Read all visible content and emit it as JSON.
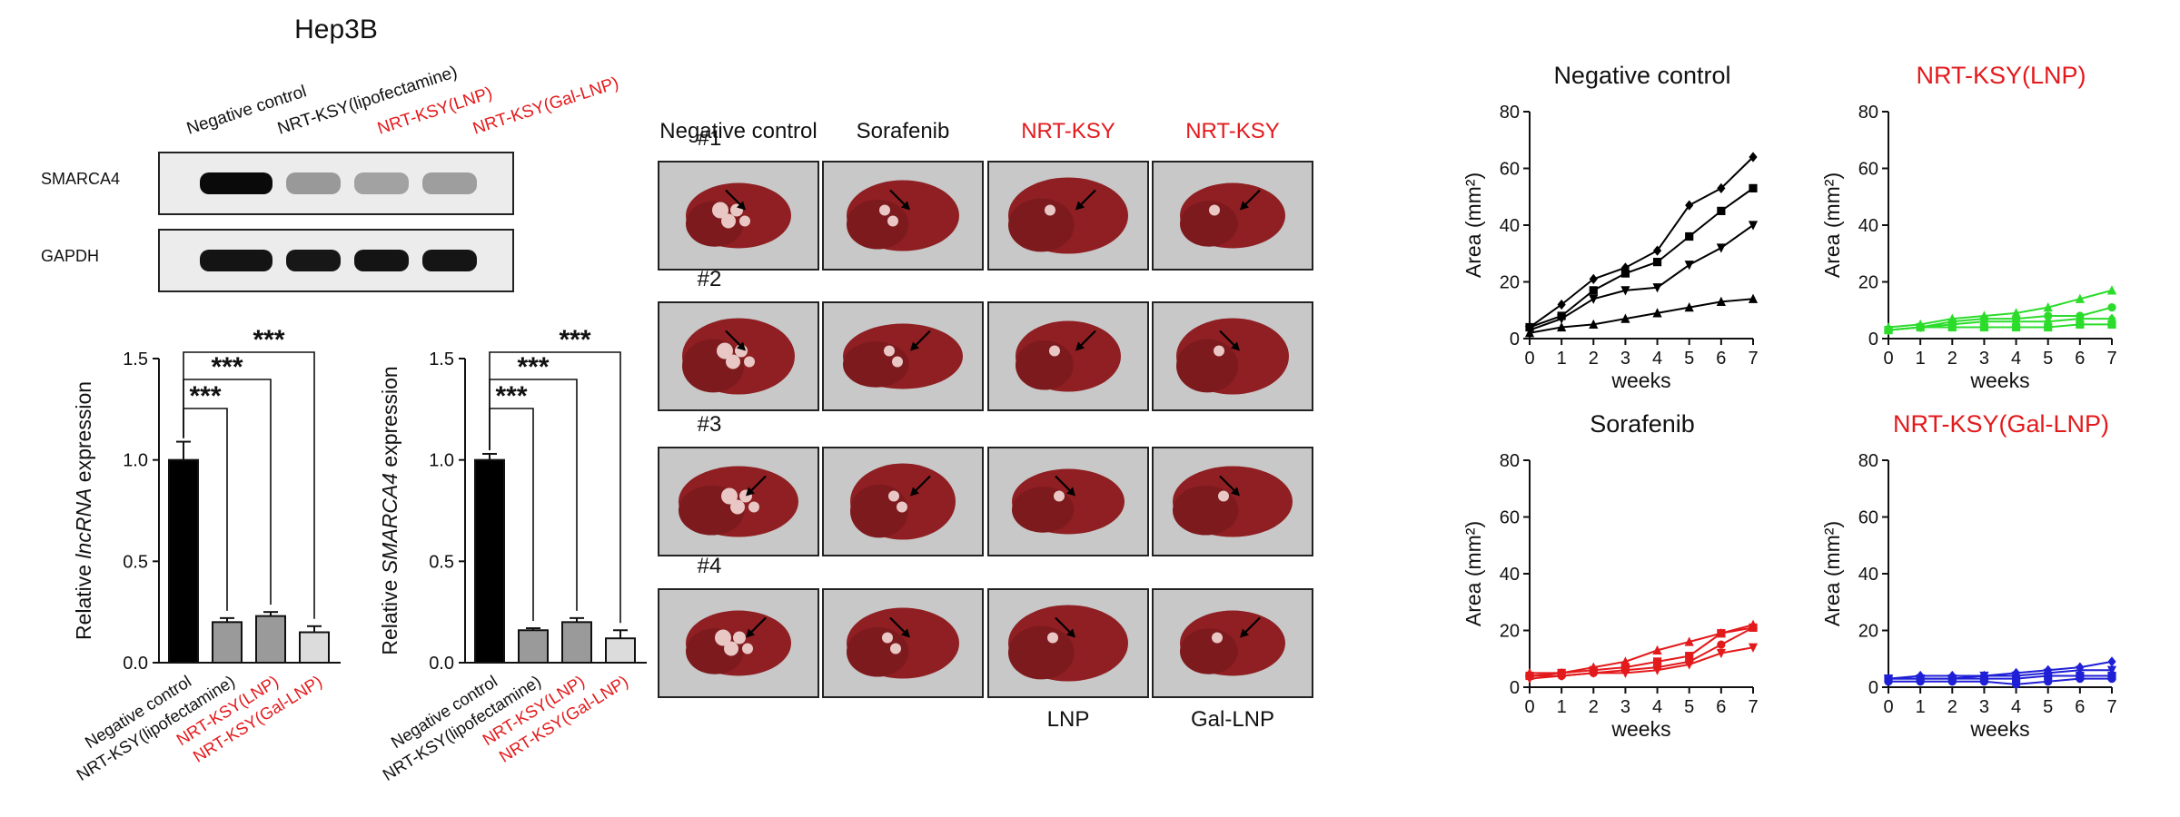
{
  "colors": {
    "black": "#000000",
    "red": "#e31a1c",
    "green": "#2bdc2b",
    "blue": "#1f1fd6",
    "gray_bar": "#9a9a9a",
    "light_bar": "#dcdcdc",
    "blot_bg": "#ececec",
    "photo_bg": "#c8c8c8",
    "liver": "#8f1f22"
  },
  "blot": {
    "title": "Hep3B",
    "lanes": [
      {
        "label": "Negative control",
        "red": false
      },
      {
        "label": "NRT-KSY(lipofectamine)",
        "red": false
      },
      {
        "label": "NRT-KSY(LNP)",
        "red": true
      },
      {
        "label": "NRT-KSY(Gal-LNP)",
        "red": true
      }
    ],
    "rows": [
      {
        "label": "SMARCA4",
        "intensity": [
          1.0,
          0.25,
          0.2,
          0.22
        ]
      },
      {
        "label": "GAPDH",
        "intensity": [
          0.95,
          0.93,
          0.95,
          0.94
        ]
      }
    ]
  },
  "bar_charts": [
    {
      "ylabel_pre": "Relative ",
      "ylabel_italic": "lncRNA",
      "ylabel_post": " expression",
      "ticks": [
        "0.0",
        "0.5",
        "1.0",
        "1.5"
      ],
      "ylim": [
        0,
        1.5
      ],
      "sig": "***",
      "categories": [
        {
          "label": "Negative control",
          "red": false
        },
        {
          "label": "NRT-KSY(lipofectamine)",
          "red": false
        },
        {
          "label": "NRT-KSY(LNP)",
          "red": true
        },
        {
          "label": "NRT-KSY(Gal-LNP)",
          "red": true
        }
      ]
    },
    {
      "ylabel_pre": "Relative ",
      "ylabel_italic": "SMARCA4",
      "ylabel_post": " expression",
      "ticks": [
        "0.0",
        "0.5",
        "1.0",
        "1.5"
      ],
      "ylim": [
        0,
        1.5
      ],
      "sig": "***",
      "categories": [
        {
          "label": "Negative control",
          "red": false
        },
        {
          "label": "NRT-KSY(lipofectamine)",
          "red": false
        },
        {
          "label": "NRT-KSY(LNP)",
          "red": true
        },
        {
          "label": "NRT-KSY(Gal-LNP)",
          "red": true
        }
      ]
    }
  ],
  "photo_grid": {
    "columns": [
      {
        "header": "Negative control",
        "red": false,
        "footer": ""
      },
      {
        "header": "Sorafenib",
        "red": false,
        "footer": ""
      },
      {
        "header": "NRT-KSY",
        "red": true,
        "footer": "LNP"
      },
      {
        "header": "NRT-KSY",
        "red": true,
        "footer": "Gal-LNP"
      }
    ],
    "rows": [
      "#1",
      "#2",
      "#3",
      "#4"
    ]
  },
  "line_panels": [
    {
      "title": "Negative control",
      "color_key": "black"
    },
    {
      "title": "NRT-KSY(LNP)",
      "color_key": "green"
    },
    {
      "title": "Sorafenib",
      "color_key": "red"
    },
    {
      "title": "NRT-KSY(Gal-LNP)",
      "color_key": "blue"
    }
  ],
  "line_axes": {
    "xlabel": "weeks",
    "ylabel": "Area (mm²)",
    "xticks": [
      "0",
      "1",
      "2",
      "3",
      "4",
      "5",
      "6",
      "7"
    ],
    "yticks": [
      "0",
      "20",
      "40",
      "60",
      "80"
    ]
  },
  "chart_data": [
    {
      "type": "bar",
      "categories": [
        "Negative control",
        "NRT-KSY(lipofectamine)",
        "NRT-KSY(LNP)",
        "NRT-KSY(Gal-LNP)"
      ],
      "values": [
        1.0,
        0.2,
        0.23,
        0.15
      ],
      "errors": [
        0.09,
        0.02,
        0.02,
        0.03
      ],
      "ylabel": "Relative lncRNA expression",
      "ylim": [
        0,
        1.5
      ],
      "annotations": [
        "***",
        "***",
        "***"
      ]
    },
    {
      "type": "bar",
      "categories": [
        "Negative control",
        "NRT-KSY(lipofectamine)",
        "NRT-KSY(LNP)",
        "NRT-KSY(Gal-LNP)"
      ],
      "values": [
        1.0,
        0.16,
        0.2,
        0.12
      ],
      "errors": [
        0.03,
        0.01,
        0.02,
        0.04
      ],
      "ylabel": "Relative SMARCA4 expression",
      "ylim": [
        0,
        1.5
      ],
      "annotations": [
        "***",
        "***",
        "***"
      ]
    },
    {
      "type": "line",
      "title": "Negative control",
      "x": [
        0,
        1,
        2,
        3,
        4,
        5,
        6,
        7
      ],
      "xlabel": "weeks",
      "ylabel": "Area (mm²)",
      "ylim": [
        0,
        80
      ],
      "series": [
        {
          "marker": "diamond",
          "values": [
            4,
            12,
            21,
            25,
            31,
            47,
            53,
            64
          ]
        },
        {
          "marker": "square",
          "values": [
            4,
            8,
            17,
            23,
            27,
            36,
            45,
            53
          ]
        },
        {
          "marker": "triangle-down",
          "values": [
            3,
            7,
            14,
            17,
            18,
            26,
            32,
            40
          ]
        },
        {
          "marker": "triangle-up",
          "values": [
            2,
            4,
            5,
            7,
            9,
            11,
            13,
            14
          ]
        }
      ]
    },
    {
      "type": "line",
      "title": "NRT-KSY(LNP)",
      "x": [
        0,
        1,
        2,
        3,
        4,
        5,
        6,
        7
      ],
      "xlabel": "weeks",
      "ylabel": "Area (mm²)",
      "ylim": [
        0,
        80
      ],
      "series": [
        {
          "marker": "triangle-up",
          "values": [
            4,
            5,
            7,
            8,
            9,
            11,
            14,
            17
          ]
        },
        {
          "marker": "circle",
          "values": [
            3,
            4,
            6,
            7,
            7,
            8,
            8,
            11
          ]
        },
        {
          "marker": "diamond",
          "values": [
            3,
            4,
            5,
            6,
            6,
            6,
            7,
            7
          ]
        },
        {
          "marker": "square",
          "values": [
            3,
            4,
            4,
            4,
            4,
            4,
            5,
            5
          ]
        }
      ]
    },
    {
      "type": "line",
      "title": "Sorafenib",
      "x": [
        0,
        1,
        2,
        3,
        4,
        5,
        6,
        7
      ],
      "xlabel": "weeks",
      "ylabel": "Area (mm²)",
      "ylim": [
        0,
        80
      ],
      "series": [
        {
          "marker": "triangle-up",
          "values": [
            5,
            5,
            7,
            9,
            13,
            16,
            19,
            22
          ]
        },
        {
          "marker": "square",
          "values": [
            4,
            5,
            6,
            7,
            9,
            11,
            19,
            21
          ]
        },
        {
          "marker": "circle",
          "values": [
            4,
            4,
            5,
            6,
            7,
            9,
            15,
            21
          ]
        },
        {
          "marker": "triangle-down",
          "values": [
            3,
            4,
            5,
            5,
            6,
            8,
            12,
            14
          ]
        }
      ]
    },
    {
      "type": "line",
      "title": "NRT-KSY(Gal-LNP)",
      "x": [
        0,
        1,
        2,
        3,
        4,
        5,
        6,
        7
      ],
      "xlabel": "weeks",
      "ylabel": "Area (mm²)",
      "ylim": [
        0,
        80
      ],
      "series": [
        {
          "marker": "diamond",
          "values": [
            3,
            4,
            4,
            4,
            5,
            6,
            7,
            9
          ]
        },
        {
          "marker": "triangle-down",
          "values": [
            3,
            3,
            3,
            4,
            4,
            5,
            6,
            6
          ]
        },
        {
          "marker": "square",
          "values": [
            3,
            3,
            3,
            3,
            3,
            4,
            4,
            4
          ]
        },
        {
          "marker": "circle",
          "values": [
            2,
            2,
            2,
            2,
            1,
            2,
            3,
            3
          ]
        }
      ]
    }
  ]
}
